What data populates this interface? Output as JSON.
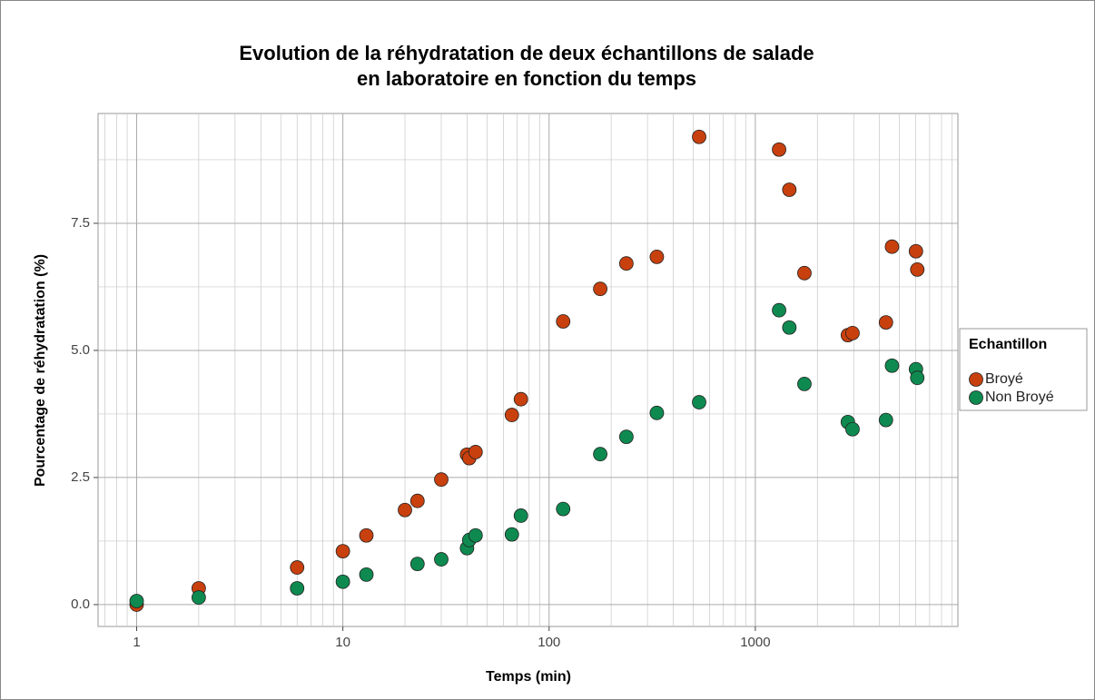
{
  "chart_data": {
    "type": "scatter",
    "title": [
      "Evolution de la réhydratation de deux échantillons de salade",
      "en laboratoire en fonction du temps"
    ],
    "x_label": "Temps (min)",
    "y_label": "Pourcentage de réhydratation (%)",
    "log_x": true,
    "grid": true,
    "legend_position": "right",
    "legend_title": "Echantillon",
    "xlim": [
      0.65,
      9600
    ],
    "ylim": [
      -0.43,
      9.66
    ],
    "xticks": [
      1,
      10,
      100,
      1000
    ],
    "yticks": [
      {
        "value": 0,
        "label": "0.0"
      },
      2.5,
      {
        "value": 5,
        "label": "5.0"
      },
      7.5
    ],
    "series": [
      {
        "name": "Broyé",
        "color": "#c8400e",
        "x": [
          1,
          2,
          6,
          10,
          13,
          20,
          23,
          30,
          40,
          41,
          44,
          66,
          73,
          117,
          177,
          237,
          333,
          534,
          1304,
          1462,
          1730,
          2810,
          2960,
          4300,
          4600,
          6010,
          6100
        ],
        "values": [
          0.0,
          0.32,
          0.73,
          1.05,
          1.36,
          1.86,
          2.04,
          2.46,
          2.95,
          2.88,
          3.0,
          3.73,
          4.04,
          5.57,
          6.21,
          6.71,
          6.84,
          9.2,
          8.95,
          8.16,
          6.52,
          5.3,
          5.34,
          5.55,
          7.04,
          6.95,
          6.59
        ]
      },
      {
        "name": "Non Broyé",
        "color": "#0e8a50",
        "x": [
          1,
          2,
          6,
          10,
          13,
          23,
          30,
          40,
          41,
          44,
          66,
          73,
          117,
          177,
          237,
          333,
          534,
          1304,
          1462,
          1730,
          2810,
          2960,
          4300,
          4600,
          6010,
          6100
        ],
        "values": [
          0.07,
          0.14,
          0.32,
          0.45,
          0.59,
          0.8,
          0.89,
          1.11,
          1.27,
          1.36,
          1.38,
          1.75,
          1.88,
          2.96,
          3.3,
          3.77,
          3.98,
          5.79,
          5.45,
          4.34,
          3.59,
          3.45,
          3.63,
          4.7,
          4.63,
          4.46
        ]
      }
    ]
  }
}
